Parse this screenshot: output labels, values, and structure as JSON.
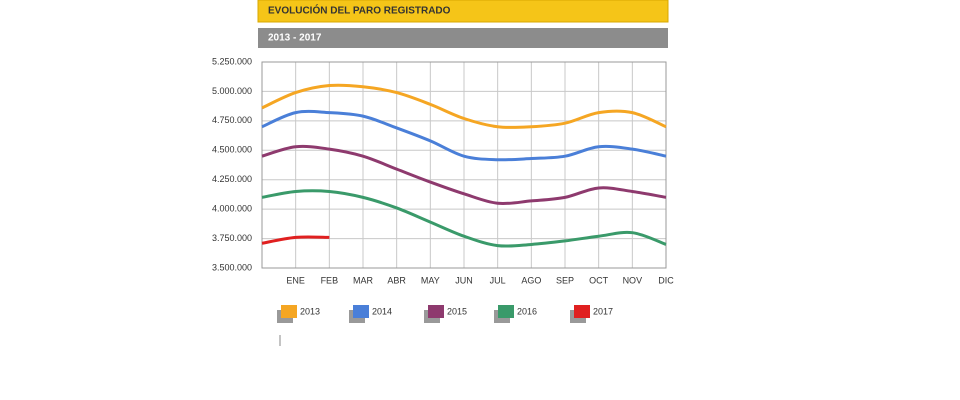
{
  "chart_data": {
    "type": "line",
    "title": "EVOLUCIÓN DEL PARO REGISTRADO",
    "subtitle": "2013 - 2017",
    "categories": [
      null,
      "ENE",
      "FEB",
      "MAR",
      "ABR",
      "MAY",
      "JUN",
      "JUL",
      "AGO",
      "SEP",
      "OCT",
      "NOV",
      "DIC"
    ],
    "series": [
      {
        "name": "2013",
        "color": "#f5a623",
        "values": [
          4860000,
          4990000,
          5050000,
          5040000,
          4990000,
          4890000,
          4770000,
          4700000,
          4700000,
          4730000,
          4820000,
          4820000,
          4700000
        ]
      },
      {
        "name": "2014",
        "color": "#4a7fd8",
        "values": [
          4700000,
          4820000,
          4820000,
          4790000,
          4690000,
          4580000,
          4450000,
          4420000,
          4430000,
          4450000,
          4530000,
          4510000,
          4450000
        ]
      },
      {
        "name": "2015",
        "color": "#8e3a6e",
        "values": [
          4450000,
          4530000,
          4510000,
          4450000,
          4340000,
          4230000,
          4130000,
          4050000,
          4070000,
          4100000,
          4180000,
          4150000,
          4100000
        ]
      },
      {
        "name": "2016",
        "color": "#3a9a6a",
        "values": [
          4100000,
          4150000,
          4150000,
          4100000,
          4010000,
          3890000,
          3770000,
          3690000,
          3700000,
          3730000,
          3770000,
          3800000,
          3700000
        ]
      },
      {
        "name": "2017",
        "color": "#e02020",
        "values": [
          3710000,
          3760000,
          3760000,
          null,
          null,
          null,
          null,
          null,
          null,
          null,
          null,
          null,
          null
        ]
      }
    ],
    "ylim": [
      3500000,
      5250000
    ],
    "yticks": [
      {
        "value": 3500000,
        "label": "3.500.000"
      },
      {
        "value": 3750000,
        "label": "3.750.000"
      },
      {
        "value": 4000000,
        "label": "4.000.000"
      },
      {
        "value": 4250000,
        "label": "4.250.000"
      },
      {
        "value": 4500000,
        "label": "4.500.000"
      },
      {
        "value": 4750000,
        "label": "4.750.000"
      },
      {
        "value": 5000000,
        "label": "5.000.000"
      },
      {
        "value": 5250000,
        "label": "5.250.000"
      }
    ],
    "grid": true,
    "legend": "bottom"
  }
}
